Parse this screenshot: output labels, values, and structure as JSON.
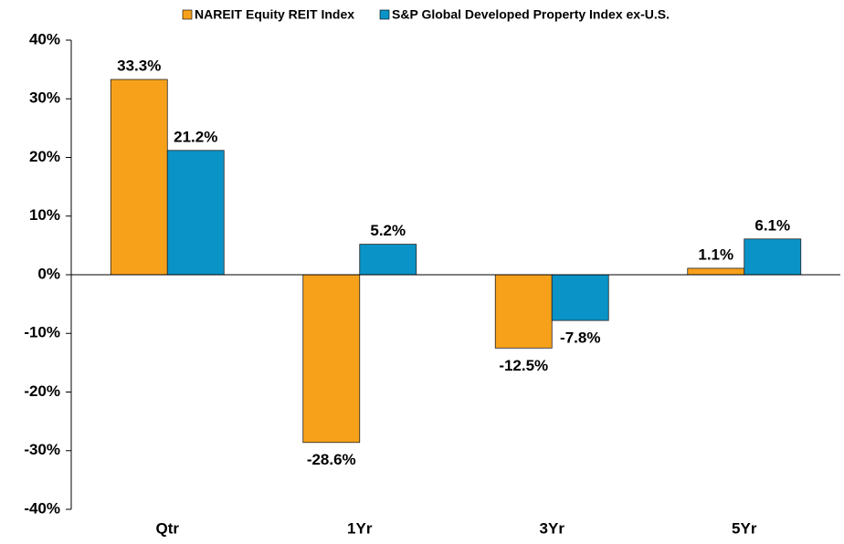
{
  "chart_data": {
    "type": "bar",
    "categories": [
      "Qtr",
      "1Yr",
      "3Yr",
      "5Yr"
    ],
    "series": [
      {
        "name": "NAREIT Equity REIT Index",
        "color": "#F7A11A",
        "values": [
          33.3,
          -28.6,
          -12.5,
          1.1
        ],
        "value_labels": [
          "33.3%",
          "-28.6%",
          "-12.5%",
          "1.1%"
        ]
      },
      {
        "name": "S&P Global Developed Property Index ex-U.S.",
        "color": "#0A93C7",
        "values": [
          21.2,
          5.2,
          -7.8,
          6.1
        ],
        "value_labels": [
          "21.2%",
          "5.2%",
          "-7.8%",
          "6.1%"
        ]
      }
    ],
    "ylim": [
      -40,
      40
    ],
    "yticks": [
      {
        "value": -40,
        "label": "-40%"
      },
      {
        "value": -30,
        "label": "-30%"
      },
      {
        "value": -20,
        "label": "-20%"
      },
      {
        "value": -10,
        "label": "-10%"
      },
      {
        "value": 0,
        "label": "0%"
      },
      {
        "value": 10,
        "label": "10%"
      },
      {
        "value": 20,
        "label": "20%"
      },
      {
        "value": 30,
        "label": "30%"
      },
      {
        "value": 40,
        "label": "40%"
      }
    ],
    "grid": false,
    "legend": "top"
  }
}
